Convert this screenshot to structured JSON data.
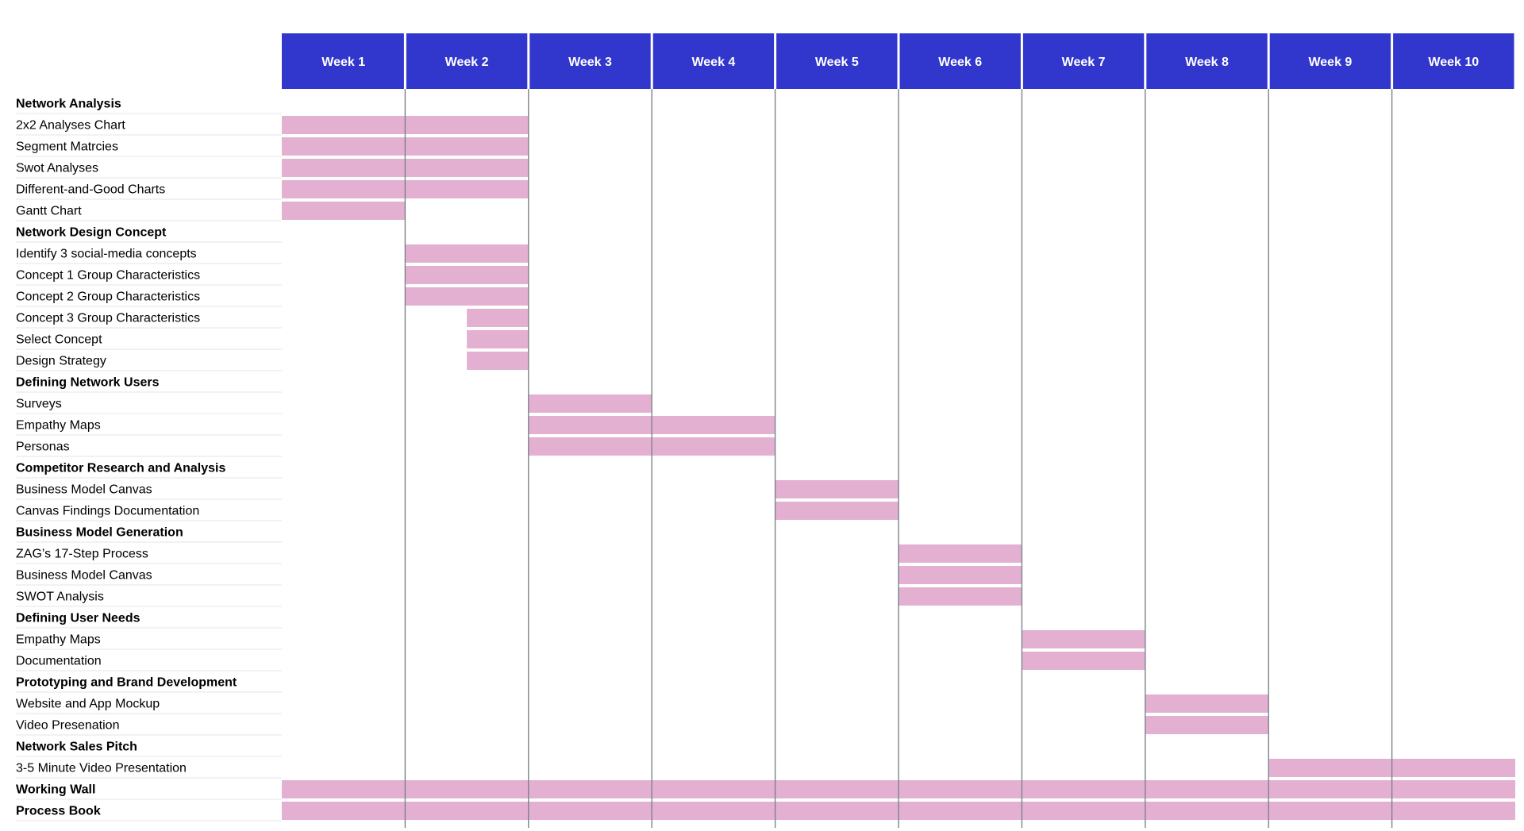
{
  "colors": {
    "header_bg": "#3136CC",
    "header_text": "#FFFFFF",
    "bar": "#E4B0D2",
    "grid_line": "#7A838A",
    "row_line": "#E3E6EA"
  },
  "chart_data": {
    "type": "gantt",
    "x_unit": "week",
    "xlim": [
      0,
      10
    ],
    "weeks": [
      "Week 1",
      "Week 2",
      "Week 3",
      "Week 4",
      "Week 5",
      "Week 6",
      "Week 7",
      "Week 8",
      "Week 9",
      "Week 10"
    ],
    "rows": [
      {
        "label": "Network Analysis",
        "group": true
      },
      {
        "label": "2x2 Analyses Chart",
        "start": 0,
        "end": 2
      },
      {
        "label": "Segment Matrcies",
        "start": 0,
        "end": 2
      },
      {
        "label": "Swot Analyses",
        "start": 0,
        "end": 2
      },
      {
        "label": "Different-and-Good Charts",
        "start": 0,
        "end": 2
      },
      {
        "label": "Gantt Chart",
        "start": 0,
        "end": 1
      },
      {
        "label": "Network Design Concept",
        "group": true
      },
      {
        "label": "Identify 3 social-media concepts",
        "start": 1,
        "end": 2
      },
      {
        "label": "Concept 1 Group Characteristics",
        "start": 1,
        "end": 2
      },
      {
        "label": "Concept 2 Group Characteristics",
        "start": 1,
        "end": 2
      },
      {
        "label": "Concept 3 Group Characteristics",
        "start": 1.5,
        "end": 2
      },
      {
        "label": "Select Concept",
        "start": 1.5,
        "end": 2
      },
      {
        "label": "Design Strategy",
        "start": 1.5,
        "end": 2
      },
      {
        "label": "Defining Network Users",
        "group": true
      },
      {
        "label": "Surveys",
        "start": 2,
        "end": 3
      },
      {
        "label": "Empathy Maps",
        "start": 2,
        "end": 4
      },
      {
        "label": "Personas",
        "start": 2,
        "end": 4
      },
      {
        "label": "Competitor Research and Analysis",
        "group": true
      },
      {
        "label": "Business Model Canvas",
        "start": 4,
        "end": 5
      },
      {
        "label": "Canvas Findings Documentation",
        "start": 4,
        "end": 5
      },
      {
        "label": "Business Model Generation",
        "group": true
      },
      {
        "label": "ZAG’s 17-Step Process",
        "start": 5,
        "end": 6
      },
      {
        "label": "Business Model Canvas",
        "start": 5,
        "end": 6
      },
      {
        "label": "SWOT Analysis",
        "start": 5,
        "end": 6
      },
      {
        "label": "Defining User Needs",
        "group": true
      },
      {
        "label": "Empathy Maps",
        "start": 6,
        "end": 7
      },
      {
        "label": "Documentation",
        "start": 6,
        "end": 7
      },
      {
        "label": "Prototyping and Brand Development",
        "group": true
      },
      {
        "label": "Website and App Mockup",
        "start": 7,
        "end": 8
      },
      {
        "label": "Video Presenation",
        "start": 7,
        "end": 8
      },
      {
        "label": "Network Sales Pitch",
        "group": true
      },
      {
        "label": "3-5 Minute Video Presentation",
        "start": 8,
        "end": 10
      },
      {
        "label": "Working Wall",
        "group": true,
        "start": 0,
        "end": 10
      },
      {
        "label": "Process Book",
        "group": true,
        "start": 0,
        "end": 10
      }
    ]
  }
}
